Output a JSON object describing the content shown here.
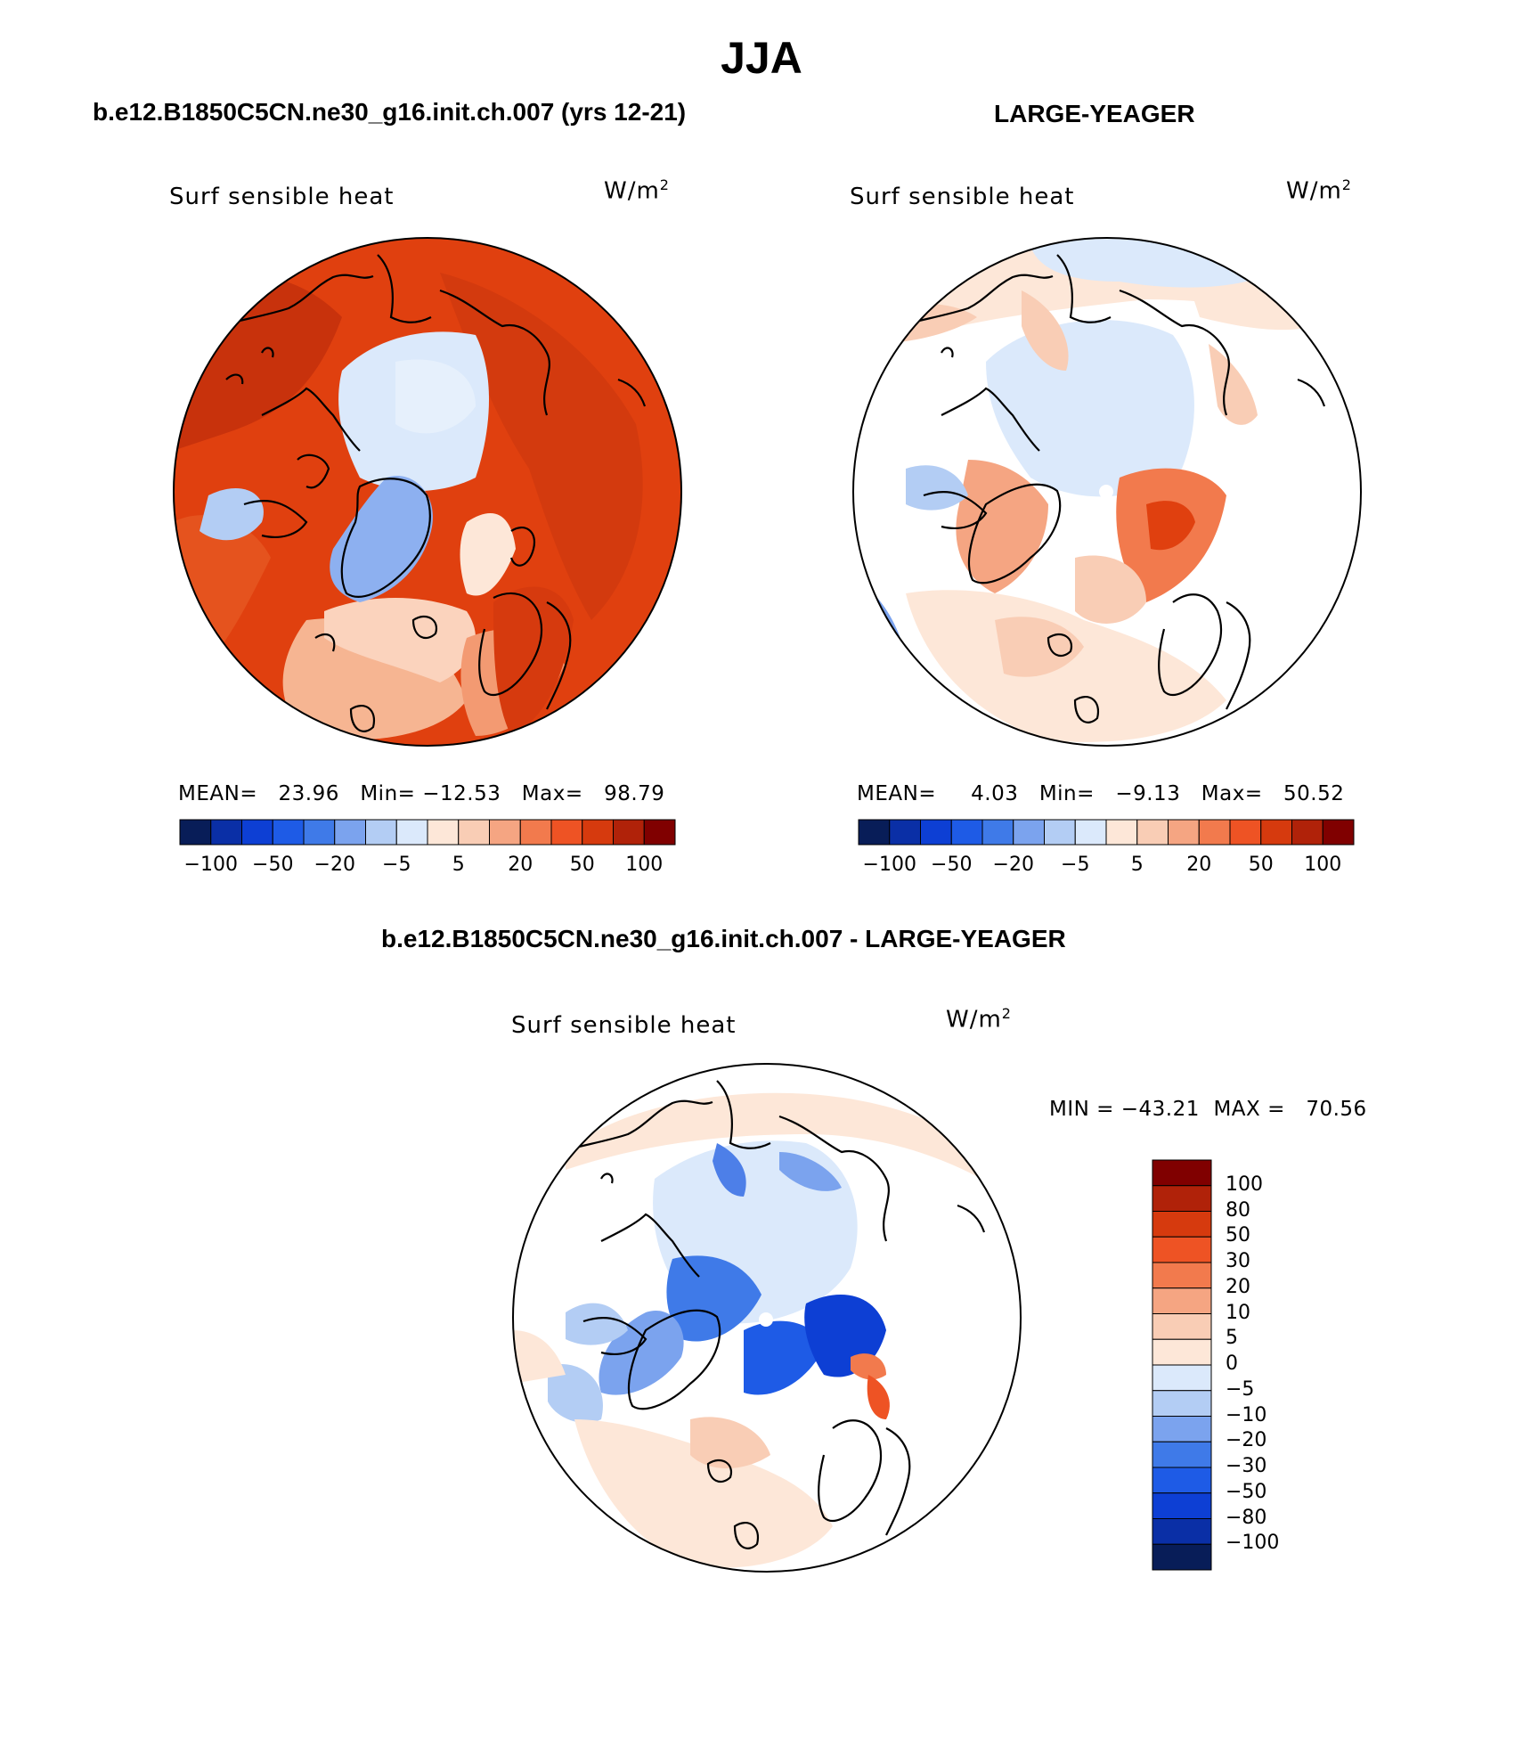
{
  "title": "JJA",
  "panels": [
    {
      "id": "left",
      "title": "b.e12.B1850C5CN.ne30_g16.init.ch.007 (yrs 12-21)",
      "variable": "Surf sensible heat",
      "units_base": "W/m",
      "units_exp": "2",
      "stats": {
        "mean_label": "MEAN=",
        "mean": "23.96",
        "min_label": "Min=",
        "min": "−12.53",
        "max_label": "Max=",
        "max": "98.79"
      }
    },
    {
      "id": "right",
      "title": "LARGE-YEAGER",
      "variable": "Surf sensible heat",
      "units_base": "W/m",
      "units_exp": "2",
      "stats": {
        "mean_label": "MEAN=",
        "mean": "4.03",
        "min_label": "Min=",
        "min": "−9.13",
        "max_label": "Max=",
        "max": "50.52"
      }
    },
    {
      "id": "diff",
      "title": "b.e12.B1850C5CN.ne30_g16.init.ch.007 - LARGE-YEAGER",
      "variable": "Surf sensible heat",
      "units_base": "W/m",
      "units_exp": "2",
      "minmax_text": "MIN = −43.21  MAX =   70.56"
    }
  ],
  "colorbar_main": {
    "colors": [
      "#081d58",
      "#0a2fa6",
      "#0d3fd4",
      "#1e5be6",
      "#3f7ae8",
      "#7ba3ee",
      "#b3cdf4",
      "#dbe9fb",
      "#fde7d8",
      "#f9cdb5",
      "#f5a582",
      "#f27a4d",
      "#ee5324",
      "#d63a0e",
      "#b02209",
      "#800000"
    ],
    "labels": [
      "−100",
      "−50",
      "−20",
      "−5",
      "5",
      "20",
      "50",
      "100"
    ]
  },
  "colorbar_diff": {
    "colors": [
      "#800000",
      "#b02209",
      "#d63a0e",
      "#ee5324",
      "#f27a4d",
      "#f5a582",
      "#f9cdb5",
      "#fde7d8",
      "#dbe9fb",
      "#b3cdf4",
      "#7ba3ee",
      "#3f7ae8",
      "#1e5be6",
      "#0d3fd4",
      "#0a2fa6",
      "#081d58"
    ],
    "labels": [
      "100",
      "80",
      "50",
      "30",
      "20",
      "10",
      "5",
      "0",
      "−5",
      "−10",
      "−20",
      "−30",
      "−50",
      "−80",
      "−100"
    ]
  }
}
